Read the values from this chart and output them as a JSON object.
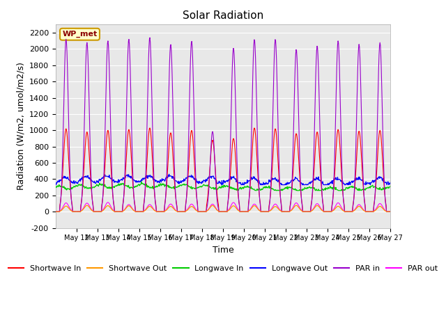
{
  "title": "Solar Radiation",
  "xlabel": "Time",
  "ylabel": "Radiation (W/m2, umol/m2/s)",
  "ylim": [
    -200,
    2300
  ],
  "yticks": [
    -200,
    0,
    200,
    400,
    600,
    800,
    1000,
    1200,
    1400,
    1600,
    1800,
    2000,
    2200
  ],
  "annotation_text": "WP_met",
  "annotation_bg": "#ffffcc",
  "annotation_border": "#cc9900",
  "plot_bg": "#e8e8e8",
  "colors": {
    "shortwave_in": "#ff0000",
    "shortwave_out": "#ff9900",
    "longwave_in": "#00cc00",
    "longwave_out": "#0000ff",
    "par_in": "#9900cc",
    "par_out": "#ff00ff"
  },
  "legend_labels": [
    "Shortwave In",
    "Shortwave Out",
    "Longwave In",
    "Longwave Out",
    "PAR in",
    "PAR out"
  ]
}
